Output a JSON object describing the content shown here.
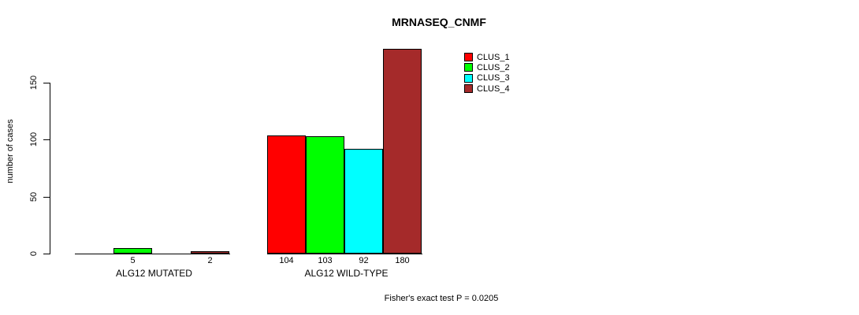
{
  "chart_data": {
    "type": "bar",
    "title": "MRNASEQ_CNMF",
    "ylabel": "number of cases",
    "xlabel": "",
    "ylim": [
      0,
      150
    ],
    "yticks": [
      0,
      50,
      100,
      150
    ],
    "grid": false,
    "legend_position": "top-right",
    "annotation": "Fisher's exact test P = 0.0205",
    "categories": [
      "ALG12 MUTATED",
      "ALG12 WILD-TYPE"
    ],
    "series": [
      {
        "name": "CLUS_1",
        "color": "#FF0000",
        "values": [
          0,
          104
        ],
        "bar_labels": [
          "",
          "104"
        ]
      },
      {
        "name": "CLUS_2",
        "color": "#00FF00",
        "values": [
          5,
          103
        ],
        "bar_labels": [
          "5",
          "103"
        ]
      },
      {
        "name": "CLUS_3",
        "color": "#00FFFF",
        "values": [
          0,
          92
        ],
        "bar_labels": [
          "",
          "92"
        ]
      },
      {
        "name": "CLUS_4",
        "color": "#A52A2A",
        "values": [
          2,
          180
        ],
        "bar_labels": [
          "2",
          "180"
        ]
      }
    ]
  }
}
